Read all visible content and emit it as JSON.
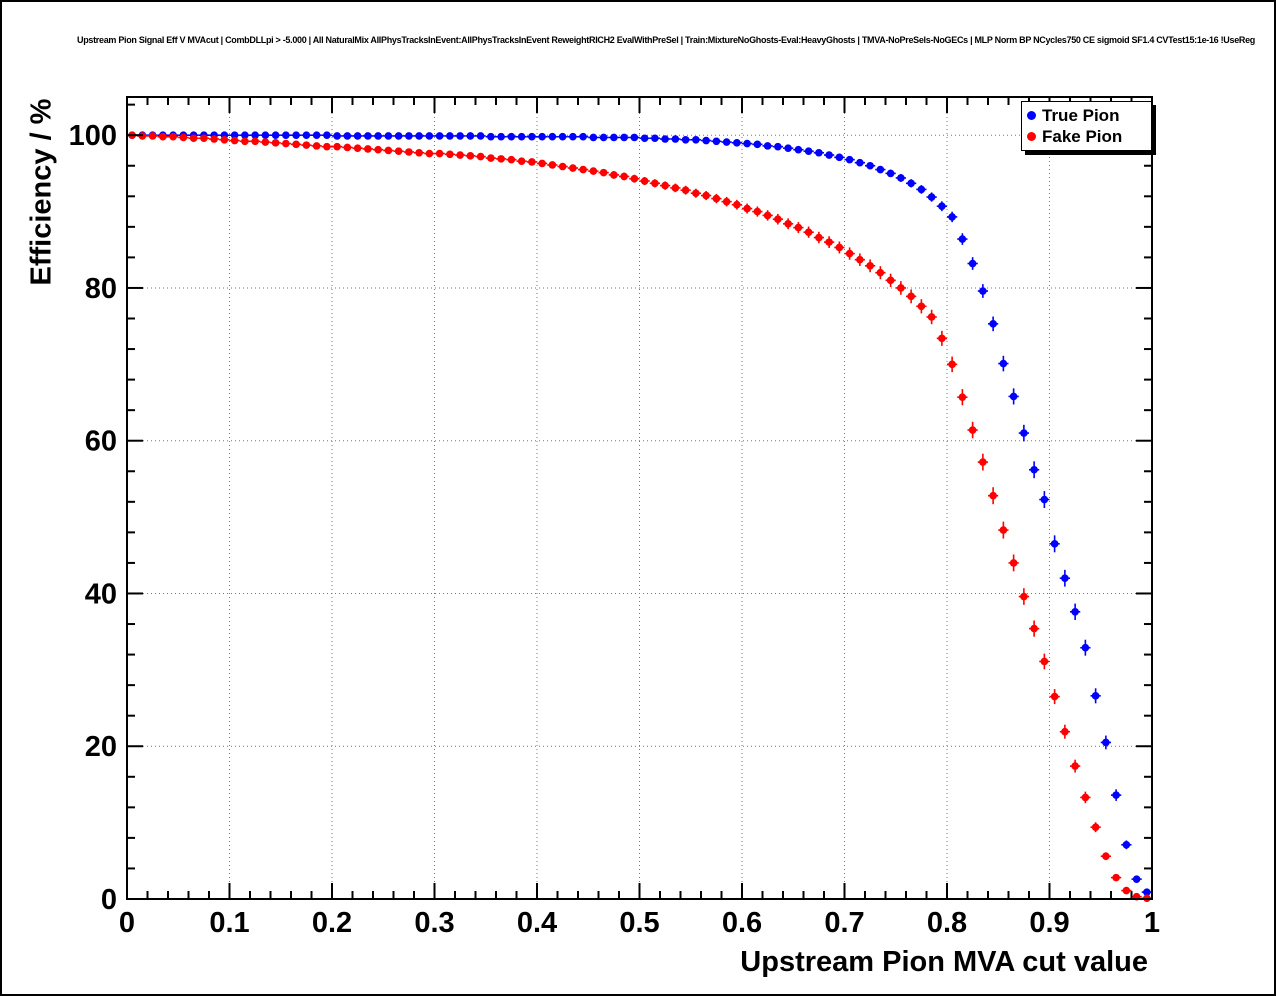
{
  "chart_data": {
    "type": "scatter",
    "title": "Upstream Pion Signal Eff V MVAcut | CombDLLpi > -5.000 | All NaturalMix AllPhysTracksInEvent:AllPhysTracksInEvent ReweightRICH2 EvalWithPreSel | Train:MixtureNoGhosts-Eval:HeavyGhosts | TMVA-NoPreSels-NoGECs | MLP Norm BP NCycles750 CE sigmoid SF1.4 CVTest15:1e-16 !UseReg",
    "xlabel": "Upstream Pion MVA cut value",
    "ylabel": "Efficiency / %",
    "xlim": [
      0,
      1
    ],
    "ylim": [
      0,
      105
    ],
    "grid": true,
    "legend_position": "top-right",
    "x_tick_labels": [
      "0",
      "0.1",
      "0.2",
      "0.3",
      "0.4",
      "0.5",
      "0.6",
      "0.7",
      "0.8",
      "0.9",
      "1"
    ],
    "y_tick_labels": [
      "0",
      "20",
      "40",
      "60",
      "80",
      "100"
    ],
    "x": [
      0.005,
      0.015,
      0.025,
      0.035,
      0.045,
      0.055,
      0.065,
      0.075,
      0.085,
      0.095,
      0.105,
      0.115,
      0.125,
      0.135,
      0.145,
      0.155,
      0.165,
      0.175,
      0.185,
      0.195,
      0.205,
      0.215,
      0.225,
      0.235,
      0.245,
      0.255,
      0.265,
      0.275,
      0.285,
      0.295,
      0.305,
      0.315,
      0.325,
      0.335,
      0.345,
      0.355,
      0.365,
      0.375,
      0.385,
      0.395,
      0.405,
      0.415,
      0.425,
      0.435,
      0.445,
      0.455,
      0.465,
      0.475,
      0.485,
      0.495,
      0.505,
      0.515,
      0.525,
      0.535,
      0.545,
      0.555,
      0.565,
      0.575,
      0.585,
      0.595,
      0.605,
      0.615,
      0.625,
      0.635,
      0.645,
      0.655,
      0.665,
      0.675,
      0.685,
      0.695,
      0.705,
      0.715,
      0.725,
      0.735,
      0.745,
      0.755,
      0.765,
      0.775,
      0.785,
      0.795,
      0.805,
      0.815,
      0.825,
      0.835,
      0.845,
      0.855,
      0.865,
      0.875,
      0.885,
      0.895,
      0.905,
      0.915,
      0.925,
      0.935,
      0.945,
      0.955,
      0.965,
      0.975,
      0.985,
      0.995
    ],
    "series": [
      {
        "name": "True Pion",
        "color": "#0000ff",
        "marker": "filled-circle",
        "y": [
          100.0,
          100.0,
          100.0,
          100.0,
          100.0,
          100.0,
          100.0,
          100.0,
          100.0,
          100.0,
          100.0,
          100.0,
          100.0,
          100.0,
          100.0,
          100.0,
          100.0,
          100.0,
          100.0,
          100.0,
          99.9,
          99.9,
          99.9,
          99.9,
          99.9,
          99.9,
          99.9,
          99.9,
          99.9,
          99.9,
          99.9,
          99.9,
          99.9,
          99.9,
          99.9,
          99.8,
          99.8,
          99.8,
          99.8,
          99.8,
          99.8,
          99.8,
          99.8,
          99.8,
          99.8,
          99.7,
          99.7,
          99.7,
          99.7,
          99.7,
          99.6,
          99.6,
          99.5,
          99.5,
          99.4,
          99.4,
          99.3,
          99.2,
          99.1,
          99.0,
          98.9,
          98.8,
          98.6,
          98.5,
          98.3,
          98.1,
          97.9,
          97.7,
          97.4,
          97.1,
          96.8,
          96.4,
          96.0,
          95.5,
          95.0,
          94.4,
          93.7,
          92.9,
          91.9,
          90.7,
          89.3,
          86.4,
          83.2,
          79.6,
          75.3,
          70.1,
          65.8,
          61.0,
          56.2,
          52.3,
          46.5,
          42.0,
          37.6,
          32.9,
          26.6,
          20.5,
          13.6,
          7.1,
          2.6,
          0.9
        ]
      },
      {
        "name": "Fake Pion",
        "color": "#ff0000",
        "marker": "filled-circle",
        "y": [
          100.0,
          99.9,
          99.9,
          99.8,
          99.8,
          99.7,
          99.6,
          99.6,
          99.5,
          99.4,
          99.3,
          99.2,
          99.2,
          99.1,
          99.0,
          98.9,
          98.8,
          98.7,
          98.6,
          98.5,
          98.5,
          98.4,
          98.3,
          98.2,
          98.1,
          98.0,
          97.9,
          97.8,
          97.7,
          97.6,
          97.6,
          97.5,
          97.4,
          97.3,
          97.2,
          97.0,
          96.9,
          96.8,
          96.6,
          96.5,
          96.3,
          96.1,
          95.9,
          95.7,
          95.5,
          95.3,
          95.1,
          94.8,
          94.6,
          94.3,
          94.0,
          93.7,
          93.4,
          93.1,
          92.8,
          92.4,
          92.1,
          91.7,
          91.3,
          90.9,
          90.4,
          90.0,
          89.5,
          89.0,
          88.4,
          87.9,
          87.3,
          86.6,
          86.0,
          85.3,
          84.5,
          83.7,
          82.9,
          82.0,
          81.0,
          80.0,
          78.9,
          77.6,
          76.2,
          73.4,
          70.0,
          65.7,
          61.4,
          57.2,
          52.8,
          48.3,
          44.0,
          39.6,
          35.4,
          31.1,
          26.5,
          21.9,
          17.4,
          13.3,
          9.4,
          5.6,
          2.8,
          1.1,
          0.3,
          0.1
        ]
      }
    ]
  }
}
